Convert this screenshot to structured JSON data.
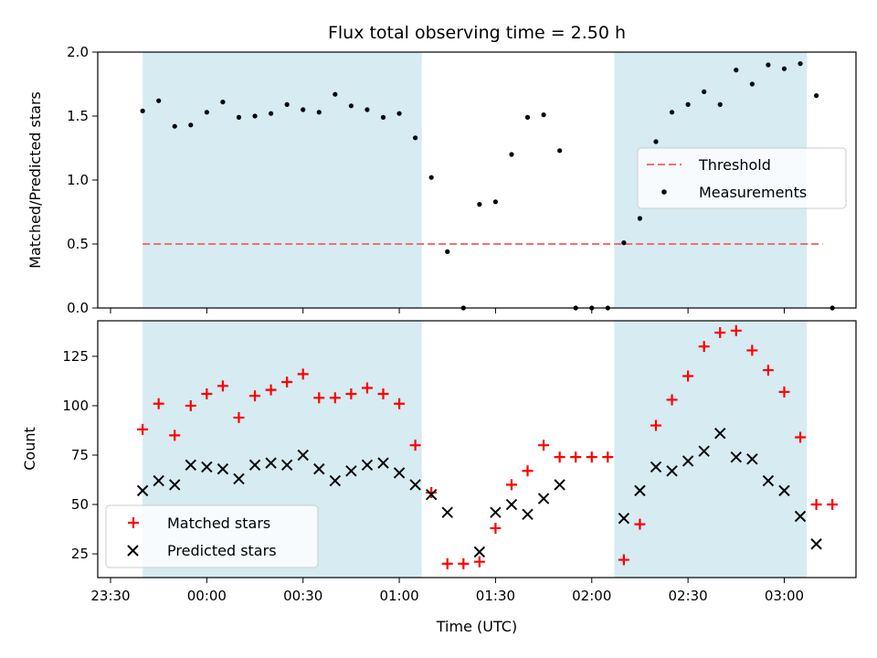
{
  "chart_data": [
    {
      "type": "scatter",
      "title": "Flux total observing time = 2.50 h",
      "ylabel": "Matched/Predicted stars",
      "xlabel": "",
      "ylim": [
        0,
        2.0
      ],
      "y_ticks": [
        "0.0",
        "0.5",
        "1.0",
        "1.5",
        "2.0"
      ],
      "legend_placement": "center-right",
      "legend": [
        {
          "label": "Threshold",
          "style": "dashed-line",
          "color": "#f07070"
        },
        {
          "label": "Measurements",
          "style": "dot",
          "color": "#000000"
        }
      ],
      "shaded_intervals": [
        [
          "23:40",
          "01:07"
        ],
        [
          "02:07",
          "03:07"
        ]
      ],
      "shade_color": "#add8e6",
      "threshold": {
        "value": 0.5,
        "x_range": [
          "23:40",
          "03:12"
        ]
      },
      "series": [
        {
          "name": "Measurements",
          "color": "#000000",
          "points": [
            [
              "23:40",
              1.54
            ],
            [
              "23:45",
              1.62
            ],
            [
              "23:50",
              1.42
            ],
            [
              "23:55",
              1.43
            ],
            [
              "00:00",
              1.53
            ],
            [
              "00:05",
              1.61
            ],
            [
              "00:10",
              1.49
            ],
            [
              "00:15",
              1.5
            ],
            [
              "00:20",
              1.52
            ],
            [
              "00:25",
              1.59
            ],
            [
              "00:30",
              1.55
            ],
            [
              "00:35",
              1.53
            ],
            [
              "00:40",
              1.67
            ],
            [
              "00:45",
              1.58
            ],
            [
              "00:50",
              1.55
            ],
            [
              "00:55",
              1.49
            ],
            [
              "01:00",
              1.52
            ],
            [
              "01:05",
              1.33
            ],
            [
              "01:10",
              1.02
            ],
            [
              "01:15",
              0.44
            ],
            [
              "01:20",
              0.0
            ],
            [
              "01:25",
              0.81
            ],
            [
              "01:30",
              0.83
            ],
            [
              "01:35",
              1.2
            ],
            [
              "01:40",
              1.49
            ],
            [
              "01:45",
              1.51
            ],
            [
              "01:50",
              1.23
            ],
            [
              "01:55",
              0.0
            ],
            [
              "02:00",
              0.0
            ],
            [
              "02:05",
              0.0
            ],
            [
              "02:10",
              0.51
            ],
            [
              "02:15",
              0.7
            ],
            [
              "02:20",
              1.3
            ],
            [
              "02:25",
              1.53
            ],
            [
              "02:30",
              1.59
            ],
            [
              "02:35",
              1.69
            ],
            [
              "02:40",
              1.59
            ],
            [
              "02:45",
              1.86
            ],
            [
              "02:50",
              1.75
            ],
            [
              "02:55",
              1.9
            ],
            [
              "03:00",
              1.87
            ],
            [
              "03:05",
              1.91
            ],
            [
              "03:10",
              1.66
            ],
            [
              "03:15",
              0.0
            ]
          ]
        }
      ]
    },
    {
      "type": "scatter",
      "title": "",
      "ylabel": "Count",
      "xlabel": "Time (UTC)",
      "ylim": [
        13,
        143
      ],
      "y_ticks": [
        "25",
        "50",
        "75",
        "100",
        "125"
      ],
      "x_ticks": [
        "23:30",
        "00:00",
        "00:30",
        "01:00",
        "01:30",
        "02:00",
        "02:30",
        "03:00"
      ],
      "legend_placement": "lower-left",
      "legend": [
        {
          "label": "Matched stars",
          "style": "plus",
          "color": "#ff0000"
        },
        {
          "label": "Predicted stars",
          "style": "x",
          "color": "#000000"
        }
      ],
      "shaded_intervals": [
        [
          "23:40",
          "01:07"
        ],
        [
          "02:07",
          "03:07"
        ]
      ],
      "series": [
        {
          "name": "Matched stars",
          "color": "#ff0000",
          "marker": "plus",
          "points": [
            [
              "23:40",
              88
            ],
            [
              "23:45",
              101
            ],
            [
              "23:50",
              85
            ],
            [
              "23:55",
              100
            ],
            [
              "00:00",
              106
            ],
            [
              "00:05",
              110
            ],
            [
              "00:10",
              94
            ],
            [
              "00:15",
              105
            ],
            [
              "00:20",
              108
            ],
            [
              "00:25",
              112
            ],
            [
              "00:30",
              116
            ],
            [
              "00:35",
              104
            ],
            [
              "00:40",
              104
            ],
            [
              "00:45",
              106
            ],
            [
              "00:50",
              109
            ],
            [
              "00:55",
              106
            ],
            [
              "01:00",
              101
            ],
            [
              "01:05",
              80
            ],
            [
              "01:10",
              56
            ],
            [
              "01:15",
              20
            ],
            [
              "01:20",
              20
            ],
            [
              "01:25",
              21
            ],
            [
              "01:30",
              38
            ],
            [
              "01:35",
              60
            ],
            [
              "01:40",
              67
            ],
            [
              "01:45",
              80
            ],
            [
              "01:50",
              74
            ],
            [
              "01:55",
              74
            ],
            [
              "02:00",
              74
            ],
            [
              "02:05",
              74
            ],
            [
              "02:10",
              22
            ],
            [
              "02:15",
              40
            ],
            [
              "02:20",
              90
            ],
            [
              "02:25",
              103
            ],
            [
              "02:30",
              115
            ],
            [
              "02:35",
              130
            ],
            [
              "02:40",
              137
            ],
            [
              "02:45",
              138
            ],
            [
              "02:50",
              128
            ],
            [
              "02:55",
              118
            ],
            [
              "03:00",
              107
            ],
            [
              "03:05",
              84
            ],
            [
              "03:10",
              50
            ],
            [
              "03:15",
              50
            ]
          ]
        },
        {
          "name": "Predicted stars",
          "color": "#000000",
          "marker": "x",
          "points": [
            [
              "23:40",
              57
            ],
            [
              "23:45",
              62
            ],
            [
              "23:50",
              60
            ],
            [
              "23:55",
              70
            ],
            [
              "00:00",
              69
            ],
            [
              "00:05",
              68
            ],
            [
              "00:10",
              63
            ],
            [
              "00:15",
              70
            ],
            [
              "00:20",
              71
            ],
            [
              "00:25",
              70
            ],
            [
              "00:30",
              75
            ],
            [
              "00:35",
              68
            ],
            [
              "00:40",
              62
            ],
            [
              "00:45",
              67
            ],
            [
              "00:50",
              70
            ],
            [
              "00:55",
              71
            ],
            [
              "01:00",
              66
            ],
            [
              "01:05",
              60
            ],
            [
              "01:10",
              55
            ],
            [
              "01:15",
              46
            ],
            [
              "01:25",
              26
            ],
            [
              "01:30",
              46
            ],
            [
              "01:35",
              50
            ],
            [
              "01:40",
              45
            ],
            [
              "01:45",
              53
            ],
            [
              "01:50",
              60
            ],
            [
              "02:10",
              43
            ],
            [
              "02:15",
              57
            ],
            [
              "02:20",
              69
            ],
            [
              "02:25",
              67
            ],
            [
              "02:30",
              72
            ],
            [
              "02:35",
              77
            ],
            [
              "02:40",
              86
            ],
            [
              "02:45",
              74
            ],
            [
              "02:50",
              73
            ],
            [
              "02:55",
              62
            ],
            [
              "03:00",
              57
            ],
            [
              "03:05",
              44
            ],
            [
              "03:10",
              30
            ]
          ]
        }
      ]
    }
  ]
}
